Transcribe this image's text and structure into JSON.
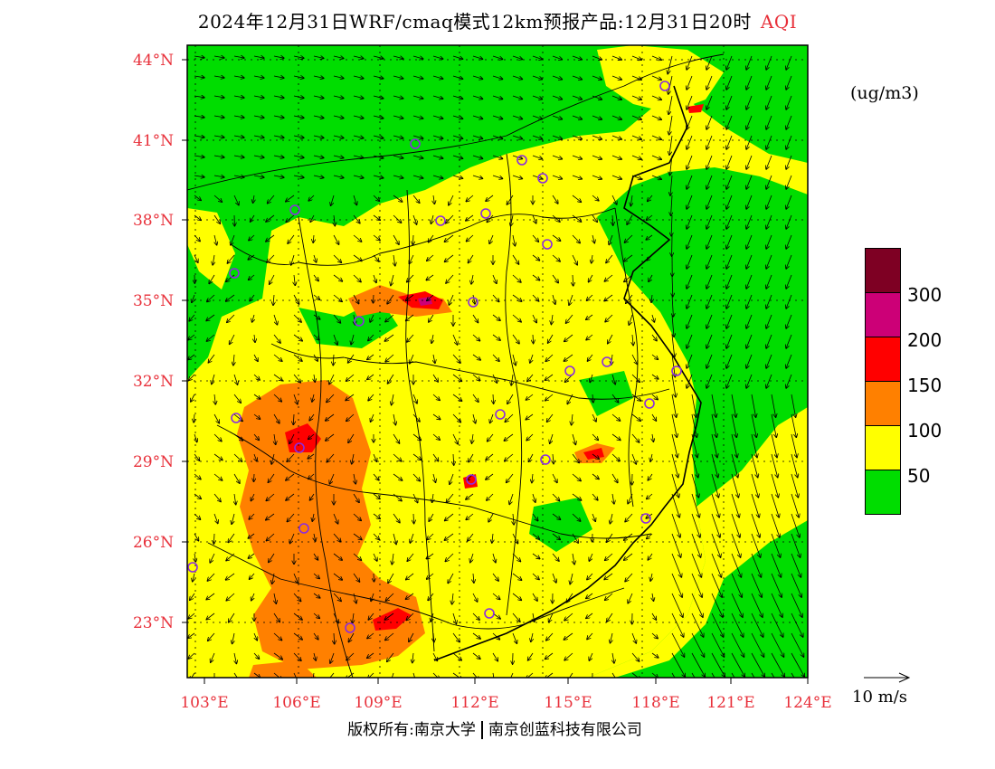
{
  "title": {
    "main": "2024年12月31日WRF/cmaq模式12km预报产品:12月31日20时",
    "product": "AQI"
  },
  "unit": "(ug/m3)",
  "legend": {
    "thresholds": [
      "50",
      "100",
      "150",
      "200",
      "300"
    ],
    "colors": [
      "#00dd00",
      "#ffff00",
      "#ff8000",
      "#ff0000",
      "#cc0077",
      "#7e0023"
    ]
  },
  "axes": {
    "lat_labels": [
      "44°N",
      "41°N",
      "38°N",
      "35°N",
      "32°N",
      "29°N",
      "26°N",
      "23°N"
    ],
    "lon_labels": [
      "103°E",
      "106°E",
      "109°E",
      "112°E",
      "115°E",
      "118°E",
      "121°E",
      "124°E"
    ]
  },
  "wind_scale": "10 m/s",
  "footer": {
    "left": "版权所有:南京大学",
    "right": "南京创蓝科技有限公司"
  }
}
